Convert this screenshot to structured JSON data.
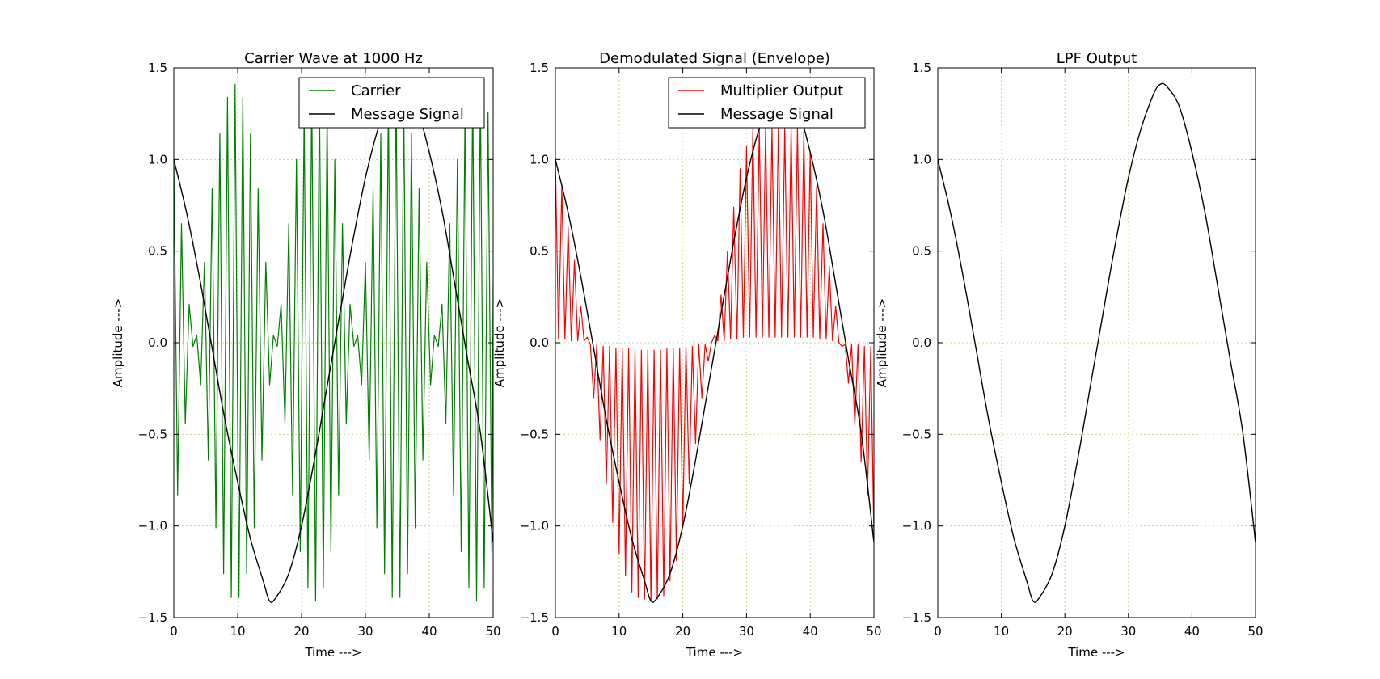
{
  "colors": {
    "carrier": "#008000",
    "multiplier": "#ff0000",
    "message": "#000000",
    "grid": "#c8d88a"
  },
  "chart_data": [
    {
      "type": "line",
      "title": "Carrier Wave at 1000 Hz",
      "xlabel": "Time --->",
      "ylabel": "Amplitude --->",
      "xlim": [
        0,
        50
      ],
      "ylim": [
        -1.5,
        1.5
      ],
      "xticks": [
        0,
        10,
        20,
        30,
        40,
        50
      ],
      "yticks": [
        -1.5,
        -1.0,
        -0.5,
        0.0,
        0.5,
        1.0,
        1.5
      ],
      "xtick_labels": [
        "0",
        "10",
        "20",
        "30",
        "40",
        "50"
      ],
      "ytick_labels": [
        "−1.5",
        "−1.0",
        "−0.5",
        "0.0",
        "0.5",
        "1.0",
        "1.5"
      ],
      "grid": true,
      "legend_position": "top-right",
      "series": [
        {
          "name": "Carrier",
          "color": "#008000",
          "x": [
            0.0,
            0.6,
            1.2,
            1.8,
            2.4,
            3.0,
            3.6,
            4.2,
            4.8,
            5.4,
            6.0,
            6.6,
            7.2,
            7.8,
            8.4,
            9.0,
            9.6,
            10.2,
            10.8,
            11.4,
            12.0,
            12.6,
            13.2,
            13.8,
            14.4,
            15.0,
            15.6,
            16.2,
            16.8,
            17.4,
            18.0,
            18.6,
            19.2,
            19.8,
            20.4,
            21.0,
            21.6,
            22.2,
            22.8,
            23.4,
            24.0,
            24.6,
            25.2,
            25.8,
            26.4,
            27.0,
            27.6,
            28.2,
            28.8,
            29.4,
            30.0,
            30.6,
            31.2,
            31.8,
            32.4,
            33.0,
            33.6,
            34.2,
            34.8,
            35.4,
            36.0,
            36.6,
            37.2,
            37.8,
            38.4,
            39.0,
            39.6,
            40.2,
            40.8,
            41.4,
            42.0,
            42.6,
            43.2,
            43.8,
            44.4,
            45.0,
            45.6,
            46.2,
            46.8,
            47.4,
            48.0,
            48.6,
            49.2,
            49.8,
            50.0
          ],
          "y": [
            1.0,
            -0.83,
            0.65,
            -0.44,
            0.21,
            -0.02,
            0.04,
            -0.23,
            0.44,
            -0.64,
            0.84,
            -1.01,
            1.14,
            -1.26,
            1.34,
            -1.39,
            1.41,
            -1.39,
            1.34,
            -1.26,
            1.14,
            -1.01,
            0.84,
            -0.64,
            0.44,
            -0.23,
            0.04,
            -0.02,
            0.21,
            -0.44,
            0.65,
            -0.83,
            1.0,
            -1.14,
            1.26,
            -1.34,
            1.39,
            -1.41,
            1.39,
            -1.34,
            1.26,
            -1.14,
            1.0,
            -0.83,
            0.65,
            -0.44,
            0.21,
            -0.02,
            0.04,
            -0.23,
            0.44,
            -0.64,
            0.84,
            -1.01,
            1.14,
            -1.26,
            1.34,
            -1.39,
            1.41,
            -1.39,
            1.34,
            -1.26,
            1.14,
            -1.01,
            0.84,
            -0.64,
            0.44,
            -0.23,
            0.04,
            -0.02,
            0.21,
            -0.44,
            0.65,
            -0.83,
            1.0,
            -1.14,
            1.26,
            -1.34,
            1.39,
            -1.41,
            1.39,
            -1.34,
            1.26,
            -1.14,
            0.33
          ]
        },
        {
          "name": "Message Signal",
          "color": "#000000",
          "x": [
            0,
            2,
            4,
            6,
            8,
            10,
            12,
            14,
            15,
            16,
            18,
            20,
            22,
            24,
            26,
            28,
            30,
            32,
            34,
            35,
            36,
            38,
            40,
            42,
            44,
            46,
            48,
            50
          ],
          "y": [
            1.0,
            0.71,
            0.36,
            -0.03,
            -0.42,
            -0.76,
            -1.07,
            -1.3,
            -1.41,
            -1.39,
            -1.26,
            -1.0,
            -0.64,
            -0.24,
            0.16,
            0.55,
            0.9,
            1.17,
            1.36,
            1.41,
            1.4,
            1.29,
            1.04,
            0.72,
            0.32,
            -0.09,
            -0.49,
            -1.09
          ]
        }
      ]
    },
    {
      "type": "line",
      "title": "Demodulated Signal (Envelope)",
      "xlabel": "Time --->",
      "ylabel": "Amplitude --->",
      "xlim": [
        0,
        50
      ],
      "ylim": [
        -1.5,
        1.5
      ],
      "xticks": [
        0,
        10,
        20,
        30,
        40,
        50
      ],
      "yticks": [
        -1.5,
        -1.0,
        -0.5,
        0.0,
        0.5,
        1.0,
        1.5
      ],
      "xtick_labels": [
        "0",
        "10",
        "20",
        "30",
        "40",
        "50"
      ],
      "ytick_labels": [
        "−1.5",
        "−1.0",
        "−0.5",
        "0.0",
        "0.5",
        "1.0",
        "1.5"
      ],
      "grid": true,
      "legend_position": "top-right",
      "series": [
        {
          "name": "Multiplier Output",
          "color": "#ff0000",
          "x": [
            0.0,
            0.5,
            1.0,
            1.5,
            2.0,
            2.5,
            3.0,
            3.5,
            4.0,
            4.5,
            5.0,
            5.5,
            6.0,
            6.5,
            7.0,
            7.5,
            8.0,
            8.5,
            9.0,
            9.5,
            10.0,
            10.5,
            11.0,
            11.5,
            12.0,
            12.5,
            13.0,
            13.5,
            14.0,
            14.5,
            15.0,
            15.5,
            16.0,
            16.5,
            17.0,
            17.5,
            18.0,
            18.5,
            19.0,
            19.5,
            20.0,
            20.5,
            21.0,
            21.5,
            22.0,
            22.5,
            23.0,
            23.5,
            24.0,
            24.5,
            25.0,
            25.5,
            26.0,
            26.5,
            27.0,
            27.5,
            28.0,
            28.5,
            29.0,
            29.5,
            30.0,
            30.5,
            31.0,
            31.5,
            32.0,
            32.5,
            33.0,
            33.5,
            34.0,
            34.5,
            35.0,
            35.5,
            36.0,
            36.5,
            37.0,
            37.5,
            38.0,
            38.5,
            39.0,
            39.5,
            40.0,
            40.5,
            41.0,
            41.5,
            42.0,
            42.5,
            43.0,
            43.5,
            44.0,
            44.5,
            45.0,
            45.5,
            46.0,
            46.5,
            47.0,
            47.5,
            48.0,
            48.5,
            49.0,
            49.5,
            50.0
          ],
          "y": [
            1.0,
            0.02,
            0.85,
            0.02,
            0.63,
            0.01,
            0.45,
            0.01,
            0.2,
            0.01,
            0.03,
            -0.01,
            -0.3,
            -0.01,
            -0.53,
            -0.02,
            -0.77,
            -0.02,
            -0.98,
            -0.03,
            -1.15,
            -0.03,
            -1.27,
            -0.03,
            -1.36,
            -0.04,
            -1.39,
            -0.04,
            -1.4,
            -0.04,
            -1.41,
            -0.04,
            -1.4,
            -0.04,
            -1.38,
            -0.03,
            -1.3,
            -0.03,
            -1.19,
            -0.03,
            -1.0,
            -0.02,
            -0.77,
            -0.02,
            -0.55,
            -0.01,
            -0.3,
            -0.01,
            -0.1,
            0.0,
            0.04,
            0.01,
            0.26,
            0.01,
            0.5,
            0.02,
            0.74,
            0.02,
            0.95,
            0.03,
            1.07,
            0.03,
            1.17,
            0.03,
            1.17,
            0.03,
            1.17,
            0.03,
            1.17,
            0.03,
            1.17,
            0.03,
            1.17,
            0.03,
            1.17,
            0.03,
            1.17,
            0.03,
            1.15,
            0.03,
            1.04,
            0.03,
            0.85,
            0.02,
            0.65,
            0.02,
            0.42,
            0.01,
            0.2,
            0.0,
            -0.02,
            -0.01,
            -0.22,
            -0.01,
            -0.45,
            -0.01,
            -0.65,
            -0.02,
            -0.83,
            -0.02,
            -1.07
          ]
        },
        {
          "name": "Message Signal",
          "color": "#000000",
          "x": [
            0,
            2,
            4,
            6,
            8,
            10,
            12,
            14,
            15,
            16,
            18,
            20,
            22,
            24,
            26,
            28,
            30,
            32,
            34,
            35,
            36,
            38,
            40,
            42,
            44,
            46,
            48,
            50
          ],
          "y": [
            1.0,
            0.71,
            0.36,
            -0.03,
            -0.42,
            -0.76,
            -1.07,
            -1.3,
            -1.41,
            -1.39,
            -1.26,
            -1.0,
            -0.64,
            -0.24,
            0.16,
            0.55,
            0.9,
            1.17,
            1.36,
            1.41,
            1.4,
            1.29,
            1.04,
            0.72,
            0.32,
            -0.09,
            -0.49,
            -1.09
          ]
        }
      ]
    },
    {
      "type": "line",
      "title": "LPF Output",
      "xlabel": "Time --->",
      "ylabel": "Amplitude --->",
      "xlim": [
        0,
        50
      ],
      "ylim": [
        -1.5,
        1.5
      ],
      "xticks": [
        0,
        10,
        20,
        30,
        40,
        50
      ],
      "yticks": [
        -1.5,
        -1.0,
        -0.5,
        0.0,
        0.5,
        1.0,
        1.5
      ],
      "xtick_labels": [
        "0",
        "10",
        "20",
        "30",
        "40",
        "50"
      ],
      "ytick_labels": [
        "−1.5",
        "−1.0",
        "−0.5",
        "0.0",
        "0.5",
        "1.0",
        "1.5"
      ],
      "grid": true,
      "series": [
        {
          "name": "",
          "color": "#000000",
          "x": [
            0,
            2,
            4,
            6,
            8,
            10,
            12,
            14,
            15,
            16,
            18,
            20,
            22,
            24,
            26,
            28,
            30,
            32,
            34,
            35,
            36,
            38,
            40,
            42,
            44,
            46,
            48,
            50
          ],
          "y": [
            1.0,
            0.71,
            0.36,
            -0.03,
            -0.42,
            -0.76,
            -1.07,
            -1.3,
            -1.41,
            -1.39,
            -1.26,
            -1.0,
            -0.64,
            -0.24,
            0.16,
            0.55,
            0.9,
            1.17,
            1.36,
            1.41,
            1.4,
            1.29,
            1.04,
            0.72,
            0.32,
            -0.09,
            -0.49,
            -1.09
          ]
        }
      ]
    }
  ]
}
